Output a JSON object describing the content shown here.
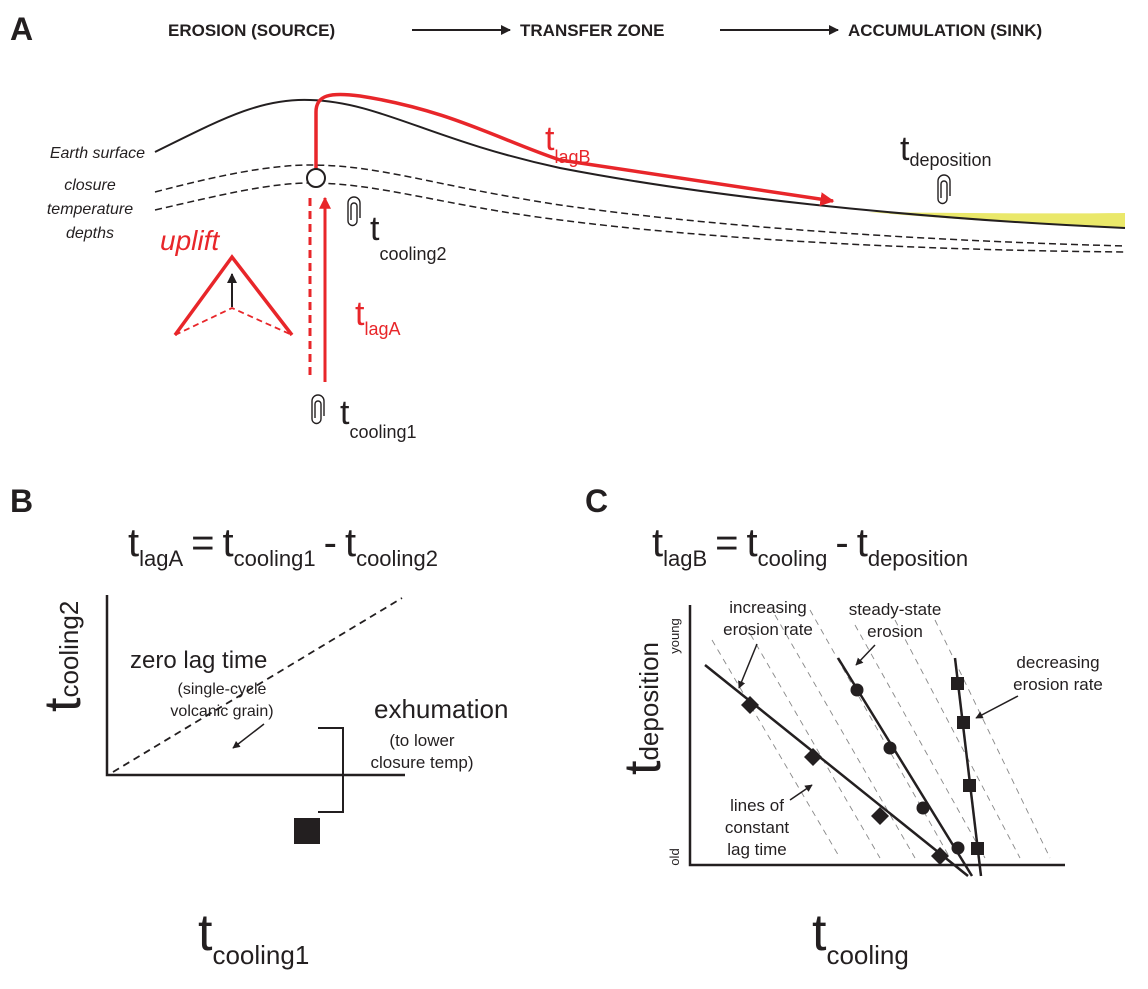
{
  "panel_a": {
    "label": "A",
    "flow": [
      "EROSION (SOURCE)",
      "TRANSFER ZONE",
      "ACCUMULATION (SINK)"
    ],
    "earth_surface": "Earth surface",
    "closure_depths": [
      "closure",
      "temperature",
      "depths"
    ],
    "uplift": "uplift",
    "t_lagB": {
      "main": "t",
      "sub": "lagB"
    },
    "t_deposition": {
      "main": "t",
      "sub": "deposition"
    },
    "t_cooling2": {
      "main": "t",
      "sub": "cooling2"
    },
    "t_lagA": {
      "main": "t",
      "sub": "lagA"
    },
    "t_cooling1": {
      "main": "t",
      "sub": "cooling1"
    }
  },
  "panel_b": {
    "label": "B",
    "equation": {
      "lhs": {
        "main": "t",
        "sub": "lagA"
      },
      "eq": "=",
      "a": {
        "main": "t",
        "sub": "cooling1"
      },
      "op": "-",
      "b": {
        "main": "t",
        "sub": "cooling2"
      }
    },
    "y_axis": {
      "main": "t",
      "sub": "cooling2"
    },
    "x_axis": {
      "main": "t",
      "sub": "cooling1"
    },
    "zero_lag": "zero lag time",
    "zero_lag_note": [
      "(single-cycle",
      "volcanic grain)"
    ],
    "exhumation": "exhumation",
    "exhumation_note": [
      "(to lower",
      "closure temp)"
    ]
  },
  "panel_c": {
    "label": "C",
    "equation": {
      "lhs": {
        "main": "t",
        "sub": "lagB"
      },
      "eq": "=",
      "a": {
        "main": "t",
        "sub": "cooling"
      },
      "op": "-",
      "b": {
        "main": "t",
        "sub": "deposition"
      }
    },
    "y_axis": {
      "main": "t",
      "sub": "deposition"
    },
    "young": "young",
    "old": "old",
    "x_axis": {
      "main": "t",
      "sub": "cooling"
    },
    "increasing": [
      "increasing",
      "erosion rate"
    ],
    "steady": [
      "steady-state",
      "erosion"
    ],
    "decreasing": [
      "decreasing",
      "erosion rate"
    ],
    "constant_lag": [
      "lines of",
      "constant",
      "lag time"
    ]
  }
}
